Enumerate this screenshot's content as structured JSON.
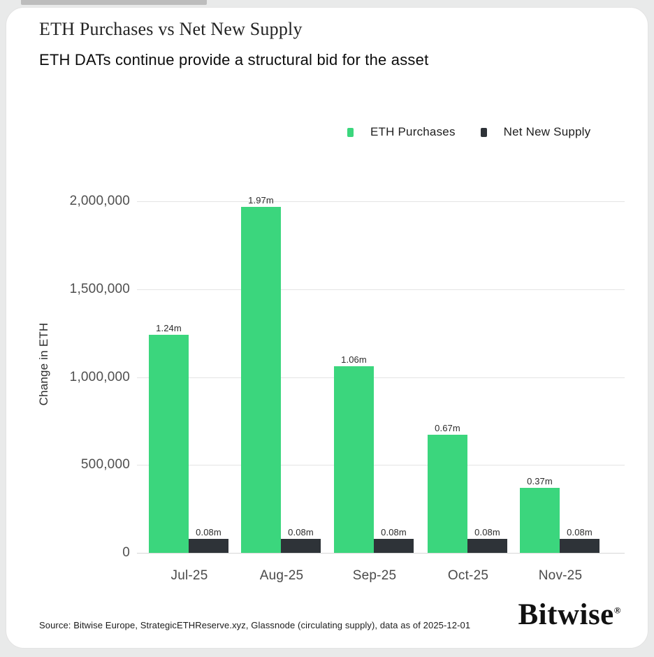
{
  "page": {
    "title": "ETH Purchases vs Net New Supply",
    "subtitle": "ETH DATs continue provide a structural bid for the asset",
    "source": "Source: Bitwise Europe, StrategicETHReserve.xyz, Glassnode (circulating supply), data as of 2025-12-01",
    "brand": "Bitwise",
    "brand_registered": "®"
  },
  "colors": {
    "purchases_green": "#3bd67d",
    "supply_dark": "#2e3338",
    "gridline": "#e4e4e4",
    "card_background": "#ffffff",
    "page_background": "#e9eaea"
  },
  "legend": [
    {
      "label": "ETH Purchases",
      "color": "#3bd67d"
    },
    {
      "label": "Net New Supply",
      "color": "#2e3338"
    }
  ],
  "chart_data": {
    "type": "bar",
    "categories": [
      "Jul-25",
      "Aug-25",
      "Sep-25",
      "Oct-25",
      "Nov-25"
    ],
    "series": [
      {
        "name": "ETH Purchases",
        "color": "#3bd67d",
        "values": [
          1240000,
          1970000,
          1060000,
          670000,
          370000
        ],
        "labels": [
          "1.24m",
          "1.97m",
          "1.06m",
          "0.67m",
          "0.37m"
        ]
      },
      {
        "name": "Net New Supply",
        "color": "#2e3338",
        "values": [
          80000,
          80000,
          80000,
          80000,
          80000
        ],
        "labels": [
          "0.08m",
          "0.08m",
          "0.08m",
          "0.08m",
          "0.08m"
        ]
      }
    ],
    "title": "ETH Purchases vs Net New Supply",
    "xlabel": "",
    "ylabel": "Change in ETH",
    "ylim": [
      0,
      2000000
    ],
    "yticks": [
      0,
      500000,
      1000000,
      1500000,
      2000000
    ],
    "ytick_labels": [
      "0",
      "500,000",
      "1,000,000",
      "1,500,000",
      "2,000,000"
    ],
    "grid": true,
    "legend_position": "top-right"
  }
}
